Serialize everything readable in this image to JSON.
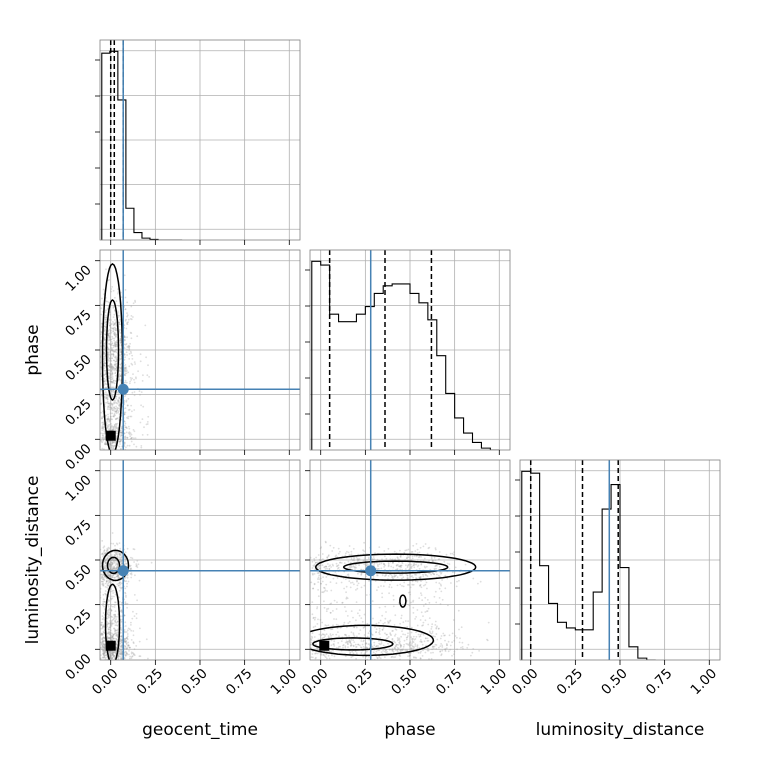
{
  "chart_data": {
    "type": "corner",
    "parameters": [
      "geocent_time",
      "phase",
      "luminosity_distance"
    ],
    "tick_values": [
      0.0,
      0.25,
      0.5,
      0.75,
      1.0
    ],
    "tick_labels": [
      "0.00",
      "0.25",
      "0.50",
      "0.75",
      "1.00"
    ],
    "axis_range": [
      -0.06,
      1.06
    ],
    "grid": true,
    "truths": {
      "geocent_time": 0.07,
      "phase": 0.28,
      "luminosity_distance": 0.44
    },
    "quantiles": {
      "geocent_time": [
        0.0,
        0.02,
        0.07
      ],
      "phase": [
        0.05,
        0.36,
        0.62
      ],
      "luminosity_distance": [
        0.0,
        0.29,
        0.49
      ]
    },
    "histograms": {
      "geocent_time": {
        "edges": [
          -0.05,
          -0.005,
          0.04,
          0.085,
          0.13,
          0.175,
          0.22,
          0.265,
          0.31,
          0.355,
          0.4
        ],
        "counts": [
          1.0,
          1.01,
          0.75,
          0.17,
          0.04,
          0.01,
          0.003,
          0.0,
          0.0,
          0.0
        ]
      },
      "phase": {
        "edges": [
          -0.05,
          0.0,
          0.05,
          0.1,
          0.15,
          0.2,
          0.25,
          0.3,
          0.35,
          0.4,
          0.45,
          0.5,
          0.55,
          0.6,
          0.65,
          0.7,
          0.75,
          0.8,
          0.85,
          0.9,
          0.95,
          1.0
        ],
        "counts": [
          1.0,
          0.98,
          0.72,
          0.68,
          0.68,
          0.72,
          0.76,
          0.83,
          0.87,
          0.88,
          0.88,
          0.83,
          0.78,
          0.69,
          0.5,
          0.3,
          0.17,
          0.09,
          0.04,
          0.01,
          0.0
        ]
      },
      "luminosity_distance": {
        "edges": [
          -0.05,
          0.0,
          0.05,
          0.1,
          0.15,
          0.2,
          0.25,
          0.3,
          0.35,
          0.4,
          0.45,
          0.5,
          0.55,
          0.6,
          0.65,
          0.7
        ],
        "counts": [
          1.0,
          0.99,
          0.5,
          0.3,
          0.2,
          0.17,
          0.16,
          0.16,
          0.36,
          0.8,
          0.93,
          0.49,
          0.07,
          0.01,
          0.0
        ]
      }
    },
    "contour_peaks": [
      {
        "x": "geocent_time",
        "y": "phase",
        "peak": [
          0.0,
          0.02
        ]
      },
      {
        "x": "geocent_time",
        "y": "luminosity_distance",
        "peak": [
          0.0,
          0.02
        ]
      },
      {
        "x": "phase",
        "y": "luminosity_distance",
        "peak": [
          0.02,
          0.02
        ]
      }
    ],
    "colors": {
      "truth": "#4682b4",
      "lines": "#000000",
      "scatter": "#a0a0a0"
    }
  }
}
